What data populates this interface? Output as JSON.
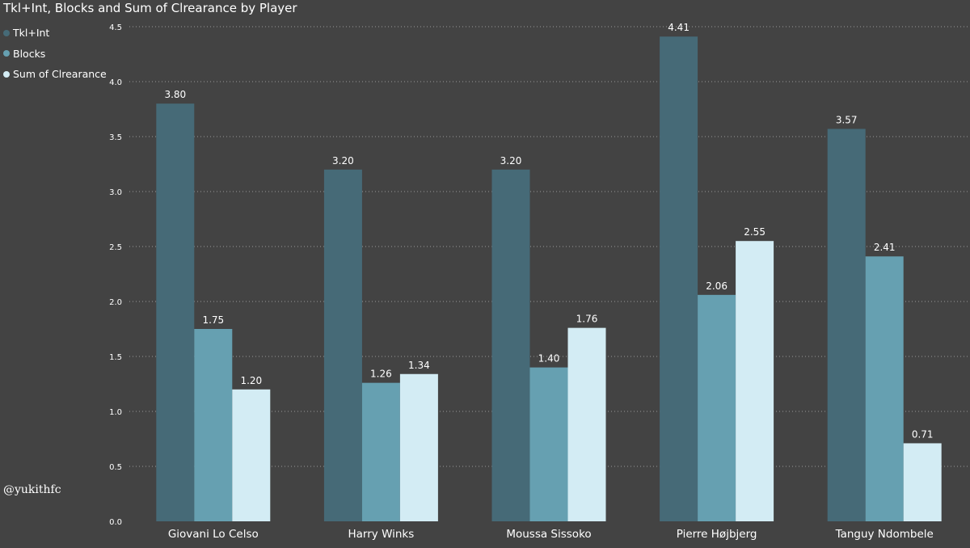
{
  "chart_data": {
    "type": "bar",
    "title": "Tkl+Int, Blocks and Sum of Clrearance by Player",
    "categories": [
      "Giovani Lo Celso",
      "Harry Winks",
      "Moussa Sissoko",
      "Pierre Højbjerg",
      "Tanguy Ndombele"
    ],
    "series": [
      {
        "name": "Tkl+Int",
        "color": "#466a77",
        "values": [
          3.8,
          3.2,
          3.2,
          4.41,
          3.57
        ]
      },
      {
        "name": "Blocks",
        "color": "#66a0b1",
        "values": [
          1.75,
          1.26,
          1.4,
          2.06,
          2.41
        ]
      },
      {
        "name": "Sum of Clrearance",
        "color": "#d3ecf4",
        "values": [
          1.2,
          1.34,
          1.76,
          2.55,
          0.71
        ]
      }
    ],
    "ylim": [
      0,
      4.5
    ],
    "yticks": [
      "0.0",
      "0.5",
      "1.0",
      "1.5",
      "2.0",
      "2.5",
      "3.0",
      "3.5",
      "4.0",
      "4.5"
    ],
    "grid": true,
    "legend_position": "top-left",
    "xlabel": "",
    "ylabel": ""
  },
  "watermark": "@yukithfc"
}
